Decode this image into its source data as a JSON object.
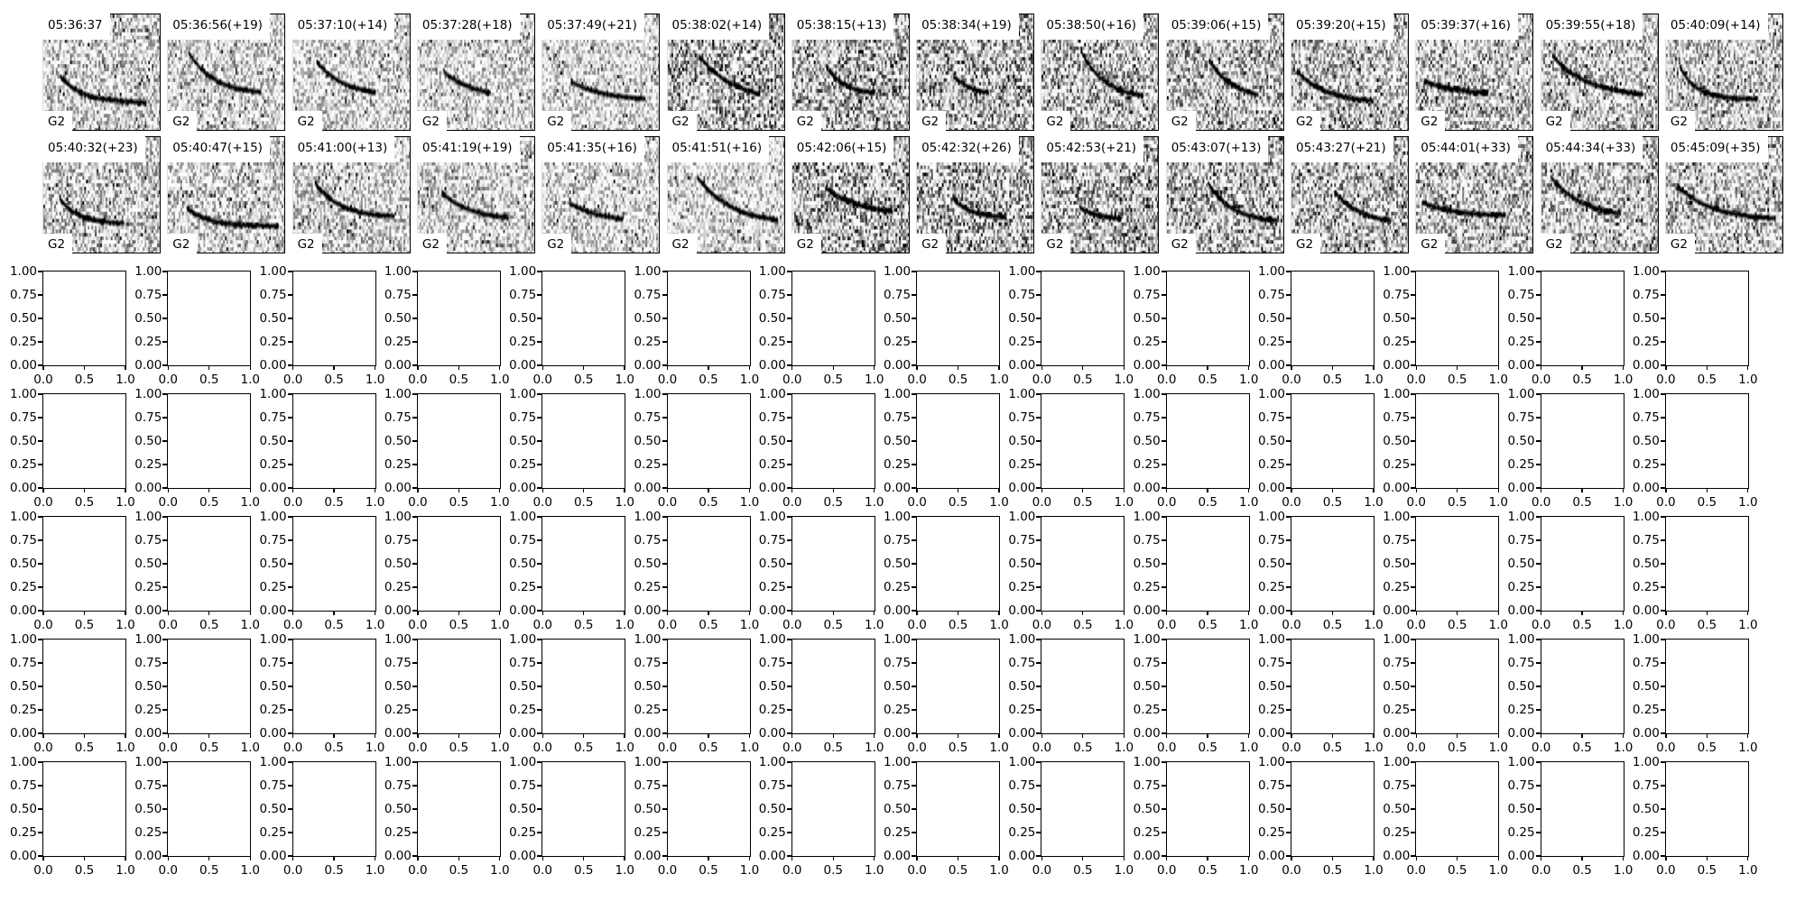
{
  "chart_data": {
    "type": "heatmap",
    "colormap": "gray_r",
    "grid": {
      "rows": 7,
      "cols": 14
    },
    "spectrogram_panels": [
      {
        "title": "05:36:37",
        "label": "G2"
      },
      {
        "title": "05:36:56(+19)",
        "label": "G2"
      },
      {
        "title": "05:37:10(+14)",
        "label": "G2"
      },
      {
        "title": "05:37:28(+18)",
        "label": "G2"
      },
      {
        "title": "05:37:49(+21)",
        "label": "G2"
      },
      {
        "title": "05:38:02(+14)",
        "label": "G2"
      },
      {
        "title": "05:38:15(+13)",
        "label": "G2"
      },
      {
        "title": "05:38:34(+19)",
        "label": "G2"
      },
      {
        "title": "05:38:50(+16)",
        "label": "G2"
      },
      {
        "title": "05:39:06(+15)",
        "label": "G2"
      },
      {
        "title": "05:39:20(+15)",
        "label": "G2"
      },
      {
        "title": "05:39:37(+16)",
        "label": "G2"
      },
      {
        "title": "05:39:55(+18)",
        "label": "G2"
      },
      {
        "title": "05:40:09(+14)",
        "label": "G2"
      },
      {
        "title": "05:40:32(+23)",
        "label": "G2"
      },
      {
        "title": "05:40:47(+15)",
        "label": "G2"
      },
      {
        "title": "05:41:00(+13)",
        "label": "G2"
      },
      {
        "title": "05:41:19(+19)",
        "label": "G2"
      },
      {
        "title": "05:41:35(+16)",
        "label": "G2"
      },
      {
        "title": "05:41:51(+16)",
        "label": "G2"
      },
      {
        "title": "05:42:06(+15)",
        "label": "G2"
      },
      {
        "title": "05:42:32(+26)",
        "label": "G2"
      },
      {
        "title": "05:42:53(+21)",
        "label": "G2"
      },
      {
        "title": "05:43:07(+13)",
        "label": "G2"
      },
      {
        "title": "05:43:27(+21)",
        "label": "G2"
      },
      {
        "title": "05:44:01(+33)",
        "label": "G2"
      },
      {
        "title": "05:44:34(+33)",
        "label": "G2"
      },
      {
        "title": "05:45:09(+35)",
        "label": "G2"
      }
    ],
    "empty_axes": {
      "rows": 5,
      "xlim": [
        0,
        1
      ],
      "ylim": [
        0,
        1
      ],
      "xticks": [
        "0.0",
        "0.5",
        "1.0"
      ],
      "yticks": [
        "0.00",
        "0.25",
        "0.50",
        "0.75",
        "1.00"
      ]
    }
  }
}
